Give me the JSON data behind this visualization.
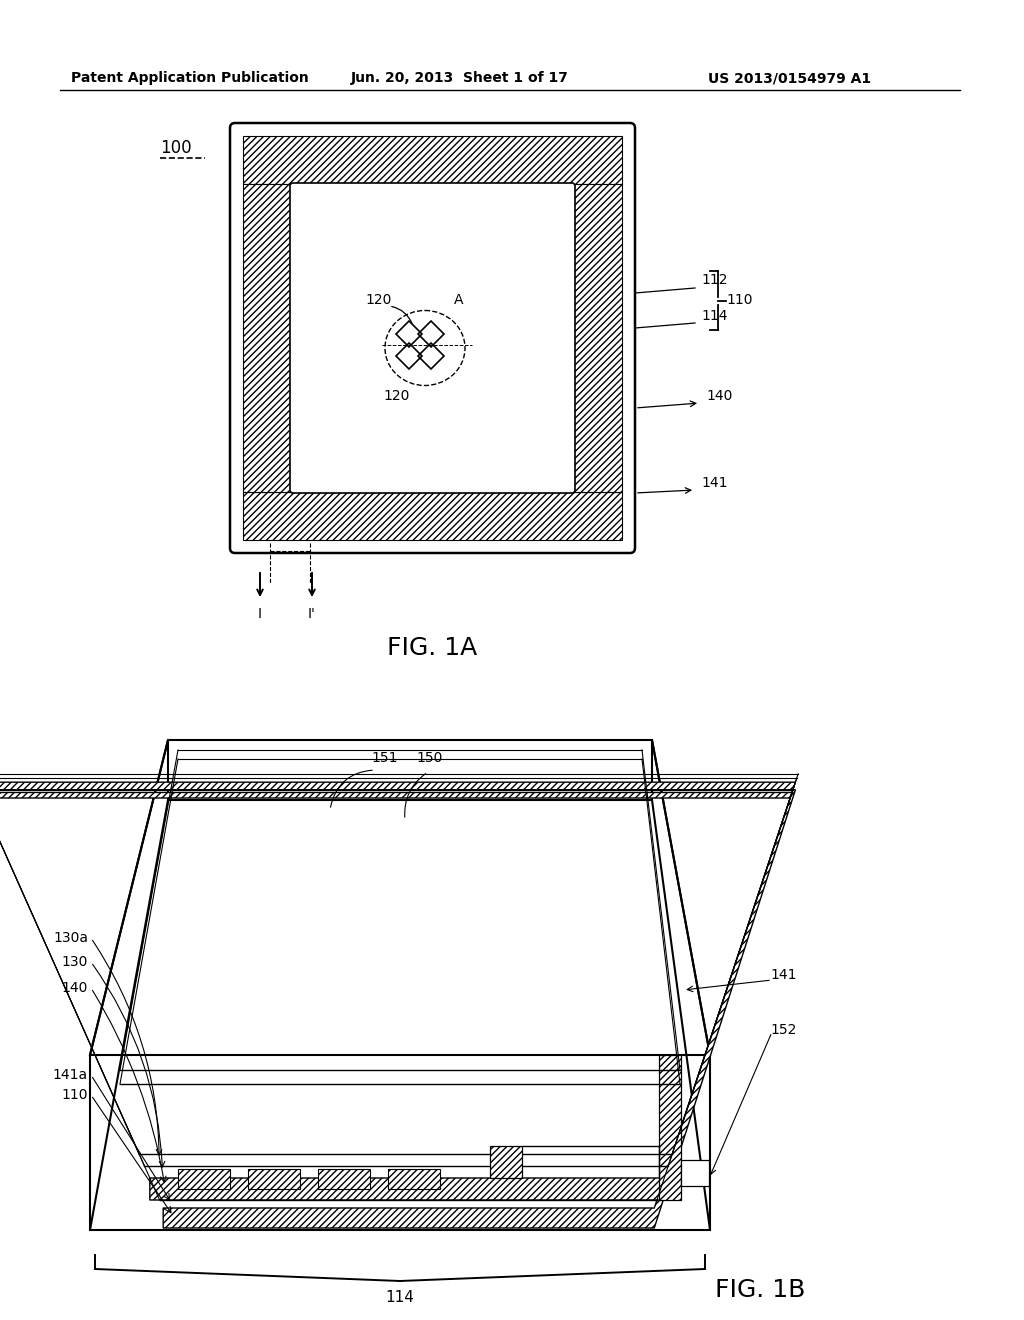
{
  "bg_color": "#ffffff",
  "header_left": "Patent Application Publication",
  "header_mid": "Jun. 20, 2013  Sheet 1 of 17",
  "header_right": "US 2013/0154979 A1",
  "fig1a_label": "FIG. 1A",
  "fig1b_label": "FIG. 1B",
  "ref_100": "100",
  "ref_110": "110",
  "ref_112": "112",
  "ref_114": "114",
  "ref_120_top": "120",
  "ref_120_bot": "120",
  "ref_A": "A",
  "ref_140": "140",
  "ref_141_1a": "141",
  "ref_I": "I",
  "ref_Ip": "I'",
  "ref_130a": "130a",
  "ref_130": "130",
  "ref_140b": "140",
  "ref_141b": "141",
  "ref_141a": "141a",
  "ref_110b": "110",
  "ref_114b": "114",
  "ref_150": "150",
  "ref_151": "151",
  "ref_152": "152",
  "line_color": "#000000",
  "hatch_color": "#000000",
  "text_color": "#000000"
}
